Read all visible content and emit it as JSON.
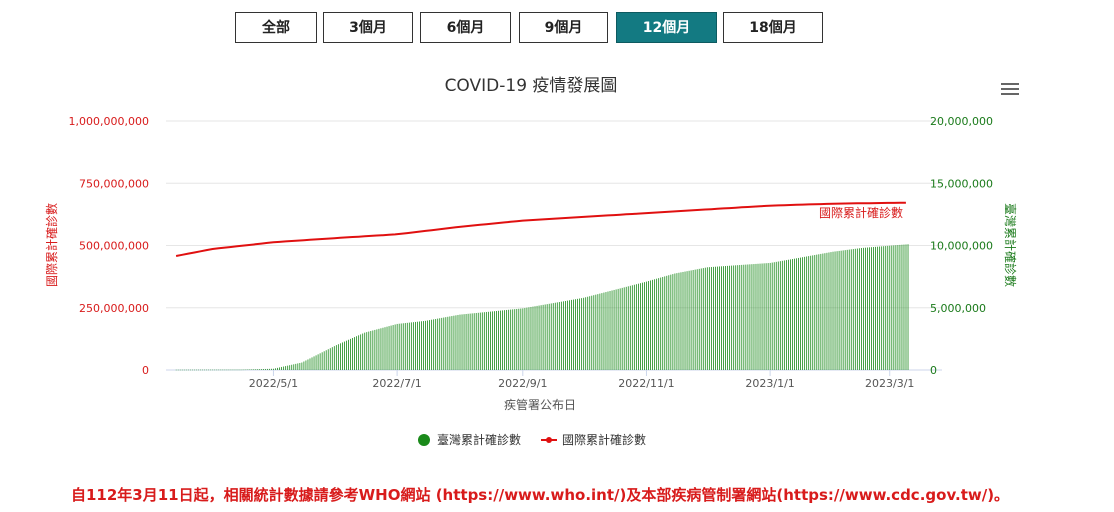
{
  "tabs": [
    {
      "label": "全部",
      "active": false
    },
    {
      "label": "3個月",
      "active": false
    },
    {
      "label": "6個月",
      "active": false
    },
    {
      "label": "9個月",
      "active": false
    },
    {
      "label": "12個月",
      "active": true
    },
    {
      "label": "18個月",
      "active": false
    }
  ],
  "menu_icon": "hamburger-menu-icon",
  "notice": "自112年3月11日起，相關統計數據請參考WHO網站 (https://www.who.int/)及本部疾病管制署網站(https://www.cdc.gov.tw/)。",
  "colors": {
    "international": "#e01010",
    "taiwan": "#1a8a1a",
    "accent": "#137a82"
  },
  "chart_data": {
    "type": "bar+line",
    "title": "COVID-19 疫情發展圖",
    "xlabel": "疾管署公布日",
    "ylabel_left": "國際累計確診數",
    "ylabel_right": "臺灣累計確診數",
    "x_ticks": [
      "2022/5/1",
      "2022/7/1",
      "2022/9/1",
      "2022/11/1",
      "2023/1/1",
      "2023/3/1"
    ],
    "x_range": [
      "2022-03-14",
      "2023-03-10"
    ],
    "ylim_left": [
      0,
      1000000000
    ],
    "ylim_right": [
      0,
      20000000
    ],
    "y_ticks_left": [
      "0",
      "250,000,000",
      "500,000,000",
      "750,000,000",
      "1,000,000,000"
    ],
    "y_ticks_right": [
      "0",
      "5,000,000",
      "10,000,000",
      "15,000,000",
      "20,000,000"
    ],
    "legend": [
      "臺灣累計確診數",
      "國際累計確診數"
    ],
    "legend_position": "bottom",
    "grid": true,
    "series": [
      {
        "name": "國際累計確診數",
        "axis": "left",
        "type": "line",
        "label": "國際累計確診數",
        "points": [
          [
            "2022-03-14",
            458000000
          ],
          [
            "2022-04-01",
            486000000
          ],
          [
            "2022-05-01",
            513000000
          ],
          [
            "2022-06-01",
            530000000
          ],
          [
            "2022-07-01",
            545000000
          ],
          [
            "2022-08-01",
            575000000
          ],
          [
            "2022-09-01",
            600000000
          ],
          [
            "2022-10-01",
            615000000
          ],
          [
            "2022-11-01",
            630000000
          ],
          [
            "2022-12-01",
            645000000
          ],
          [
            "2023-01-01",
            660000000
          ],
          [
            "2023-02-01",
            668000000
          ],
          [
            "2023-03-10",
            672000000
          ]
        ]
      },
      {
        "name": "臺灣累計確診數",
        "axis": "right",
        "type": "bar",
        "points": [
          [
            "2022-03-14",
            25000
          ],
          [
            "2022-04-15",
            35000
          ],
          [
            "2022-05-01",
            100000
          ],
          [
            "2022-05-15",
            600000
          ],
          [
            "2022-06-01",
            2000000
          ],
          [
            "2022-06-15",
            3000000
          ],
          [
            "2022-07-01",
            3700000
          ],
          [
            "2022-07-15",
            3950000
          ],
          [
            "2022-08-01",
            4450000
          ],
          [
            "2022-09-01",
            4950000
          ],
          [
            "2022-10-01",
            5800000
          ],
          [
            "2022-11-01",
            7100000
          ],
          [
            "2022-11-15",
            7750000
          ],
          [
            "2022-12-01",
            8250000
          ],
          [
            "2023-01-01",
            8600000
          ],
          [
            "2023-01-15",
            9000000
          ],
          [
            "2023-02-01",
            9500000
          ],
          [
            "2023-02-15",
            9800000
          ],
          [
            "2023-03-10",
            10100000
          ]
        ]
      }
    ]
  }
}
